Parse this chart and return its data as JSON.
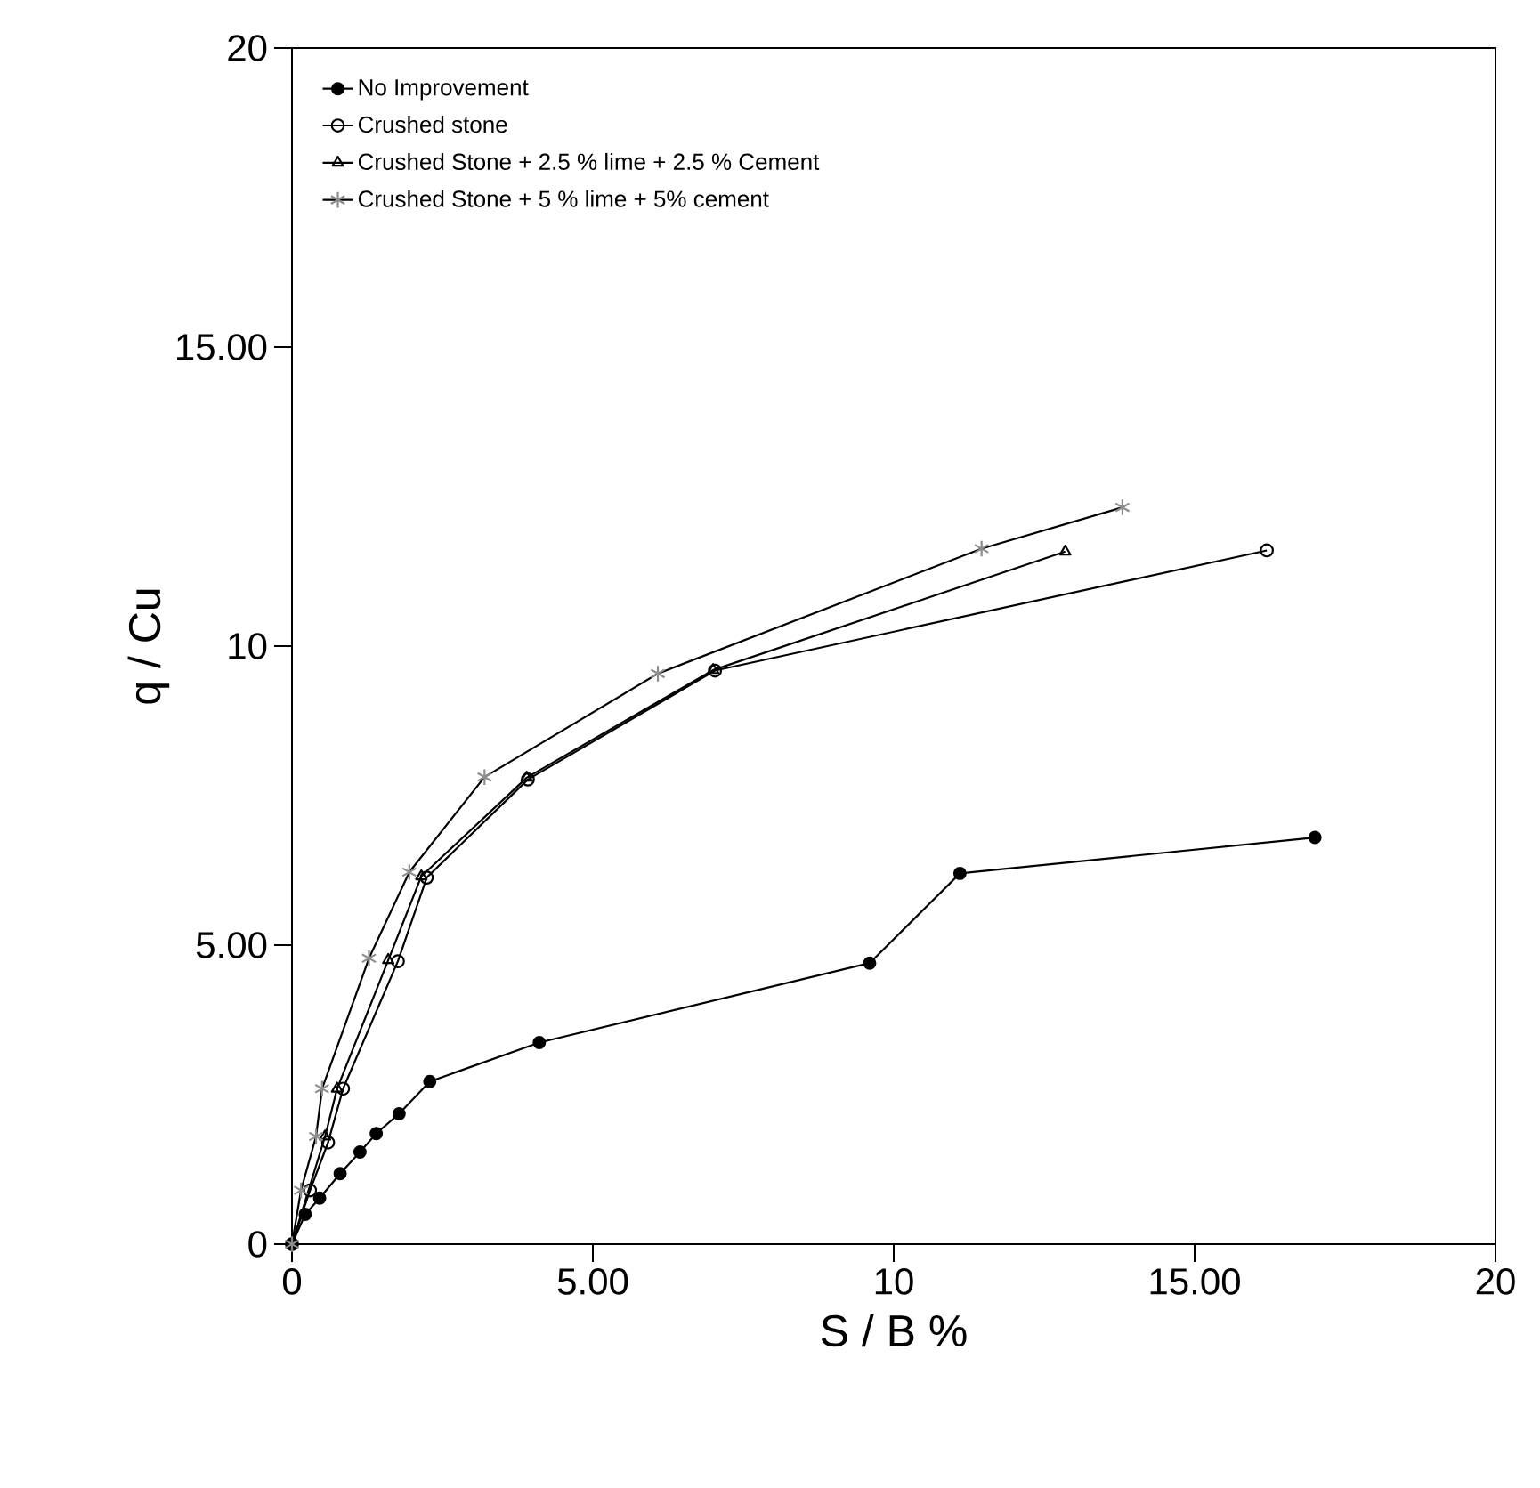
{
  "chart_data": {
    "type": "line",
    "xlabel": "S / B  %",
    "ylabel": "q / Cu",
    "xlim": [
      0,
      20
    ],
    "ylim": [
      0,
      20
    ],
    "xticks": [
      0,
      {
        "value": 5,
        "label": "5.00"
      },
      10,
      {
        "value": 15,
        "label": "15.00"
      },
      20
    ],
    "yticks": [
      0,
      {
        "value": 5,
        "label": "5.00"
      },
      10,
      {
        "value": 15,
        "label": "15.00"
      },
      20
    ],
    "grid": false,
    "legend": "top left",
    "line_style": "solid",
    "series": [
      {
        "name": "No Improvement",
        "color": "#000000",
        "marker": "circle",
        "x": [
          0,
          0.22,
          0.46,
          0.8,
          1.13,
          1.4,
          1.78,
          2.29,
          4.11,
          9.6,
          11.1,
          17.0
        ],
        "values": [
          0,
          0.5,
          0.77,
          1.18,
          1.54,
          1.85,
          2.18,
          2.72,
          3.37,
          4.7,
          6.2,
          6.8
        ]
      },
      {
        "name": "Crushed stone",
        "color": "#000000",
        "marker": "circle",
        "x": [
          0,
          0.3,
          0.6,
          0.85,
          1.76,
          2.24,
          3.92,
          7.03,
          16.2
        ],
        "values": [
          0,
          0.9,
          1.7,
          2.6,
          4.73,
          6.13,
          7.77,
          9.59,
          11.6
        ]
      },
      {
        "name": "Crushed Stone + 2.5 % lime + 2.5 % Cement",
        "color": "#000000",
        "marker": "triangle",
        "x": [
          0,
          0.55,
          0.75,
          1.6,
          2.15,
          3.9,
          7.0,
          12.85
        ],
        "values": [
          0,
          1.8,
          2.6,
          4.75,
          6.15,
          7.8,
          9.6,
          11.58
        ]
      },
      {
        "name": "Crushed Stone + 5 % lime + 5% cement",
        "color": "#000000",
        "marker": "cross",
        "x": [
          0,
          0.15,
          0.4,
          0.5,
          1.28,
          1.95,
          3.2,
          6.08,
          11.46,
          13.8
        ],
        "values": [
          0,
          0.9,
          1.8,
          2.6,
          4.78,
          6.22,
          7.81,
          9.54,
          11.63,
          12.32
        ]
      }
    ]
  }
}
